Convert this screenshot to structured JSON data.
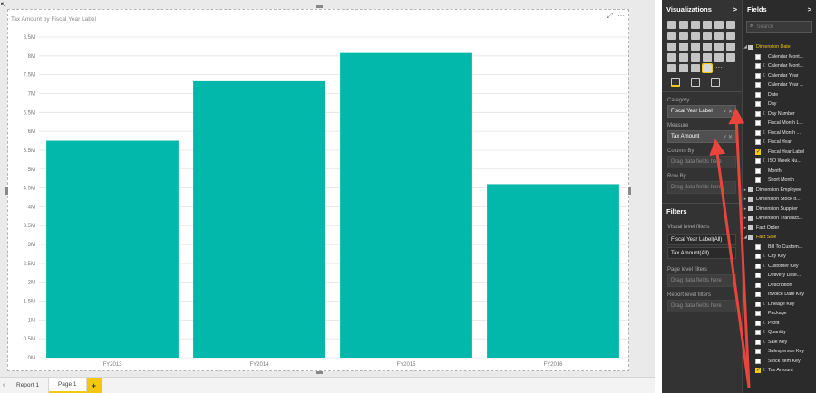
{
  "report": {
    "chart_title": "Tax Amount by Fiscal Year Label"
  },
  "chart_data": {
    "type": "bar",
    "title": "Tax Amount by Fiscal Year Label",
    "categories": [
      "FY2013",
      "FY2014",
      "FY2015",
      "FY2016"
    ],
    "values": [
      5750000,
      7350000,
      8100000,
      4600000
    ],
    "y_tick_labels": [
      "0M",
      "0.5M",
      "1M",
      "1.5M",
      "2M",
      "2.5M",
      "3M",
      "3.5M",
      "4M",
      "4.5M",
      "5M",
      "5.5M",
      "6M",
      "6.5M",
      "7M",
      "7.5M",
      "8M",
      "8.5M"
    ],
    "ylim": [
      0,
      8500000
    ],
    "grid": true,
    "bar_color": "#01b8aa",
    "xlabel": "",
    "ylabel": ""
  },
  "tabs": [
    {
      "label": "Report 1",
      "active": false
    },
    {
      "label": "Page 1",
      "active": true
    }
  ],
  "add_page_label": "+",
  "visualizations": {
    "title": "Visualizations",
    "collapse": ">",
    "category_label": "Category",
    "category_value": "Fiscal Year Label",
    "measure_label": "Measure",
    "measure_value": "Tax Amount",
    "column_by_label": "Column By",
    "row_by_label": "Row By",
    "drag_placeholder": "Drag data fields here",
    "well_controls": "˅ ✕"
  },
  "filters": {
    "title": "Filters",
    "visual_level_label": "Visual level filters",
    "visual_filters": [
      "Fiscal Year Label(All)",
      "Tax Amount(All)"
    ],
    "page_level_label": "Page level filters",
    "report_level_label": "Report level filters",
    "drag_placeholder": "Drag data fields here"
  },
  "fields": {
    "title": "Fields",
    "collapse": ">",
    "search_placeholder": "Search",
    "rows": [
      {
        "type": "table",
        "name": "Dimension Date",
        "open": true
      },
      {
        "type": "field",
        "name": "Calendar Mont...",
        "sigma": false,
        "checked": false
      },
      {
        "type": "field",
        "name": "Calendar Mont...",
        "sigma": true,
        "checked": false
      },
      {
        "type": "field",
        "name": "Calendar Year",
        "sigma": true,
        "checked": false
      },
      {
        "type": "field",
        "name": "Calendar Year ...",
        "sigma": false,
        "checked": false
      },
      {
        "type": "field",
        "name": "Date",
        "sigma": false,
        "checked": false
      },
      {
        "type": "field",
        "name": "Day",
        "sigma": false,
        "checked": false
      },
      {
        "type": "field",
        "name": "Day Number",
        "sigma": true,
        "checked": false
      },
      {
        "type": "field",
        "name": "Fiscal Month L...",
        "sigma": false,
        "checked": false
      },
      {
        "type": "field",
        "name": "Fiscal Month ...",
        "sigma": true,
        "checked": false
      },
      {
        "type": "field",
        "name": "Fiscal Year",
        "sigma": true,
        "checked": false
      },
      {
        "type": "field",
        "name": "Fiscal Year Label",
        "sigma": false,
        "checked": true
      },
      {
        "type": "field",
        "name": "ISO Week Nu...",
        "sigma": true,
        "checked": false
      },
      {
        "type": "field",
        "name": "Month",
        "sigma": false,
        "checked": false
      },
      {
        "type": "field",
        "name": "Short Month",
        "sigma": false,
        "checked": false
      },
      {
        "type": "table",
        "name": "Dimension Employee",
        "open": false
      },
      {
        "type": "table",
        "name": "Dimension Stock It...",
        "open": false
      },
      {
        "type": "table",
        "name": "Dimension Supplier",
        "open": false
      },
      {
        "type": "table",
        "name": "Dimension Transact...",
        "open": false
      },
      {
        "type": "table",
        "name": "Fact Order",
        "open": false
      },
      {
        "type": "table",
        "name": "Fact Sale",
        "open": true
      },
      {
        "type": "field",
        "name": "Bill To Custom...",
        "sigma": false,
        "checked": false
      },
      {
        "type": "field",
        "name": "City Key",
        "sigma": true,
        "checked": false
      },
      {
        "type": "field",
        "name": "Customer Key",
        "sigma": true,
        "checked": false
      },
      {
        "type": "field",
        "name": "Delivery Date...",
        "sigma": false,
        "checked": false
      },
      {
        "type": "field",
        "name": "Description",
        "sigma": false,
        "checked": false
      },
      {
        "type": "field",
        "name": "Invoice Date Key",
        "sigma": false,
        "checked": false
      },
      {
        "type": "field",
        "name": "Lineage Key",
        "sigma": true,
        "checked": false
      },
      {
        "type": "field",
        "name": "Package",
        "sigma": false,
        "checked": false
      },
      {
        "type": "field",
        "name": "Profit",
        "sigma": true,
        "checked": false
      },
      {
        "type": "field",
        "name": "Quantity",
        "sigma": true,
        "checked": false
      },
      {
        "type": "field",
        "name": "Sale Key",
        "sigma": true,
        "checked": false
      },
      {
        "type": "field",
        "name": "Salesperson Key",
        "sigma": false,
        "checked": false
      },
      {
        "type": "field",
        "name": "Stock Item Key",
        "sigma": false,
        "checked": false
      },
      {
        "type": "field",
        "name": "Tax Amount",
        "sigma": true,
        "checked": true
      }
    ]
  },
  "colors": {
    "accent": "#f2c811",
    "annotation": "#e8453c",
    "pane_dark": "#333333"
  }
}
